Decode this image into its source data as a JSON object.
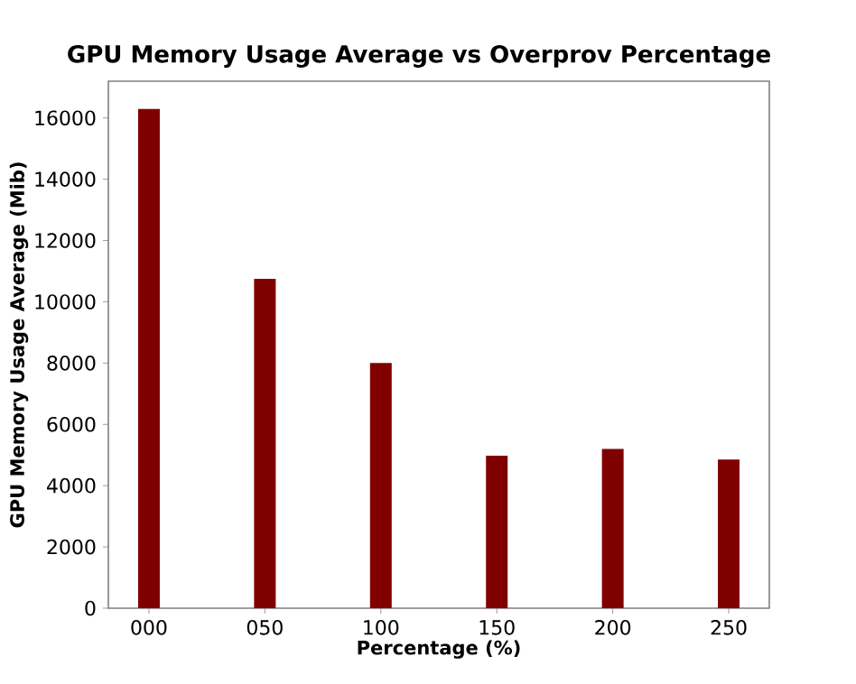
{
  "chart_data": {
    "type": "bar",
    "title": "GPU Memory Usage Average vs Overprov Percentage",
    "xlabel": "Percentage (%)",
    "ylabel": "GPU Memory Usage Average (Mib)",
    "categories": [
      "000",
      "050",
      "100",
      "150",
      "200",
      "250"
    ],
    "values": [
      16300,
      10750,
      8000,
      4980,
      5200,
      4850
    ],
    "color": "#800000",
    "ylim": [
      0,
      17200
    ],
    "yticks": [
      0,
      2000,
      4000,
      6000,
      8000,
      10000,
      12000,
      14000,
      16000
    ],
    "grid": false
  }
}
